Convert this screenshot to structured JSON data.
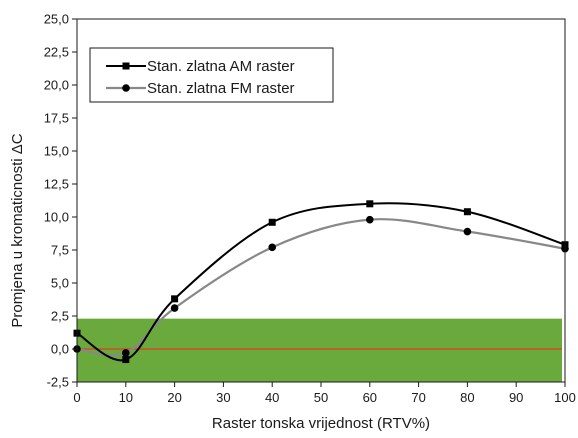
{
  "chart_data": {
    "type": "line",
    "xlabel": "Raster tonska vrijednost (RTV%)",
    "ylabel": "Promjena u kromaticnosti  ΔC",
    "xlim": [
      0,
      100
    ],
    "ylim": [
      -2.5,
      25
    ],
    "xticks": [
      "0",
      "10",
      "20",
      "30",
      "40",
      "50",
      "60",
      "70",
      "80",
      "90",
      "100"
    ],
    "yticks": [
      "-2,5",
      "0,0",
      "2,5",
      "5,0",
      "7,5",
      "10,0",
      "12,5",
      "15,0",
      "17,5",
      "20,0",
      "22,5",
      "25,0"
    ],
    "x": [
      0,
      10,
      20,
      40,
      60,
      80,
      100
    ],
    "series": [
      {
        "name": "Stan. zlatna AM raster",
        "marker": "square",
        "color": "#000000",
        "values": [
          1.2,
          -0.8,
          3.8,
          9.6,
          11.0,
          10.4,
          7.9
        ]
      },
      {
        "name": "Stan. zlatna FM raster",
        "marker": "circle",
        "color": "#888888",
        "values": [
          0.0,
          -0.3,
          3.1,
          7.7,
          9.8,
          8.9,
          7.6
        ]
      }
    ],
    "tolerance_band": {
      "from": -2.5,
      "to": 2.3,
      "color": "#6aaa3c"
    },
    "reference_line": {
      "y": 0,
      "color": "#e03c1e"
    },
    "legend": "top-left",
    "grid": false
  }
}
